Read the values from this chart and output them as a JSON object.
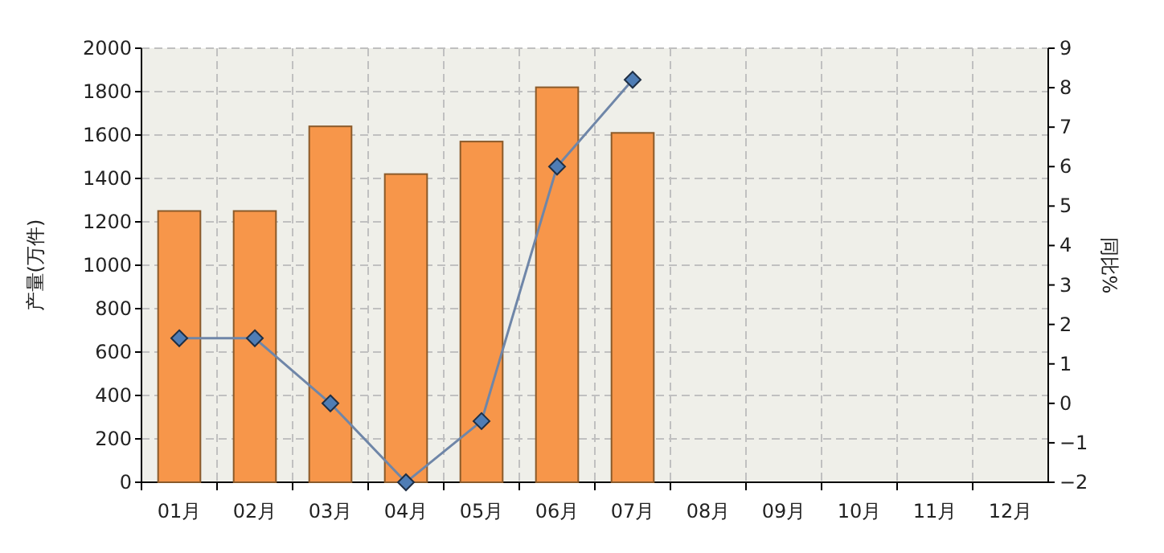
{
  "chart_data": {
    "type": "bar",
    "ylabel": "产量(万件)",
    "y2label": "同比%",
    "categories": [
      "01月",
      "02月",
      "03月",
      "04月",
      "05月",
      "06月",
      "07月",
      "08月",
      "09月",
      "10月",
      "11月",
      "12月"
    ],
    "series": [
      {
        "color": "#f7964a",
        "values": [
          1250,
          1250,
          1640,
          1420,
          1570,
          1820,
          1610,
          null,
          null,
          null,
          null,
          null
        ]
      },
      {
        "type": "line",
        "axis": "y2",
        "color": "#6f86a8",
        "marker": "diamond",
        "values": [
          1.65,
          1.65,
          0,
          -2,
          -0.45,
          6,
          8.2,
          null,
          null,
          null,
          null,
          null
        ]
      }
    ],
    "ylim": [
      0,
      2000
    ],
    "yticks": [
      0,
      200,
      400,
      600,
      800,
      1000,
      1200,
      1400,
      1600,
      1800,
      2000
    ],
    "y2lim": [
      -2,
      9
    ],
    "y2ticks": [
      -2,
      -1,
      0,
      1,
      2,
      3,
      4,
      5,
      6,
      7,
      8,
      9
    ],
    "grid": true
  }
}
